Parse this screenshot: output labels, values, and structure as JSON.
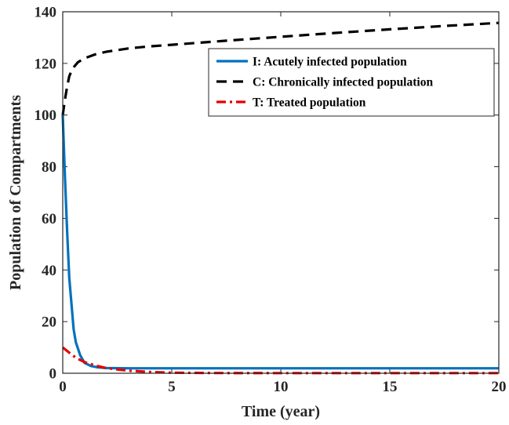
{
  "chart_data": {
    "type": "line",
    "title": "",
    "xlabel": "Time (year)",
    "ylabel": "Population of Compartments",
    "xlim": [
      0,
      20
    ],
    "ylim": [
      0,
      140
    ],
    "xticks": [
      0,
      5,
      10,
      15,
      20
    ],
    "yticks": [
      0,
      20,
      40,
      60,
      80,
      100,
      120,
      140
    ],
    "grid": false,
    "legend_position": "upper-right",
    "series": [
      {
        "name": "I: Acutely infected population",
        "color": "#0072BD",
        "style": "solid",
        "x": [
          0,
          0.1,
          0.2,
          0.3,
          0.4,
          0.5,
          0.6,
          0.8,
          1.0,
          1.3,
          1.6,
          2.0,
          3.0,
          4.0,
          5.0,
          7.5,
          10,
          12.5,
          15,
          17.5,
          20
        ],
        "y": [
          100,
          76,
          55,
          37,
          27,
          17,
          12,
          7,
          4,
          2.8,
          2.3,
          2.0,
          1.9,
          1.9,
          1.9,
          1.9,
          1.9,
          1.9,
          1.9,
          1.9,
          1.9
        ]
      },
      {
        "name": "C: Chronically infected population",
        "color": "#000000",
        "style": "dashed",
        "x": [
          0,
          0.1,
          0.2,
          0.3,
          0.4,
          0.5,
          0.7,
          1.0,
          1.5,
          2.0,
          3.0,
          4.0,
          5.0,
          7.5,
          10,
          12.5,
          15,
          17.5,
          20
        ],
        "y": [
          100,
          106,
          111,
          115,
          117,
          118.5,
          120.5,
          122,
          123.5,
          124.5,
          125.8,
          126.6,
          127.2,
          128.8,
          130.3,
          131.8,
          133.2,
          134.5,
          135.7
        ]
      },
      {
        "name": "T: Treated population",
        "color": "#E60000",
        "style": "dash-dot",
        "x": [
          0,
          0.3,
          0.6,
          1.0,
          1.5,
          2.0,
          2.5,
          3.0,
          4.0,
          5.0,
          7.0,
          10,
          15,
          20
        ],
        "y": [
          10,
          8.0,
          6.0,
          4.3,
          3.0,
          2.0,
          1.5,
          1.0,
          0.5,
          0.2,
          0.1,
          0.05,
          0.05,
          0.05
        ]
      }
    ]
  }
}
